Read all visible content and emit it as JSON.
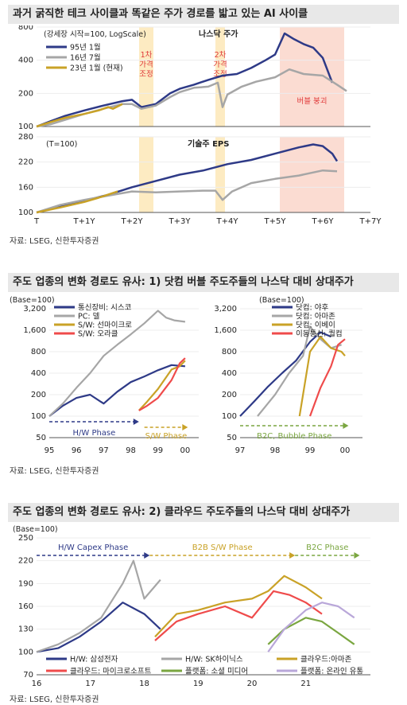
{
  "section1": {
    "title": "과거 굵직한 테크 사이클과 똑같은 주가 경로를 밟고 있는 AI 사이클",
    "source": "자료: LSEG, 신한투자증권"
  },
  "section2": {
    "title": "주도 업종의 변화 경로도 유사: 1) 닷컴 버블 주도주들의 나스닥 대비 상대주가",
    "source": "자료: LSEG, 신한투자증권"
  },
  "section3": {
    "title": "주도 업종의 변화 경로도 유사: 2) 클라우드 주도주들의 나스닥 대비 상대주가",
    "source": "자료: LSEG, 신한투자증권"
  },
  "chart_data": [
    {
      "id": "nasdaq",
      "type": "line",
      "title": "나스닥 주가",
      "note": "(강세장 시작=100, LogScale)",
      "y_scale": "log",
      "ylim": [
        100,
        800
      ],
      "yticks": [
        100,
        200,
        400,
        800
      ],
      "x_ticks": [
        "T",
        "T+1Y",
        "T+2Y",
        "T+3Y",
        "T+4Y",
        "T+5Y",
        "T+6Y",
        "T+7Y"
      ],
      "xlim": [
        0,
        7
      ],
      "colors": {
        "s95": "#2e3a87",
        "s16": "#a6a6a6",
        "s23": "#c9a227"
      },
      "series": [
        {
          "key": "s95",
          "name": "95년 1월",
          "x": [
            0,
            0.3,
            0.6,
            1.0,
            1.4,
            1.8,
            2.0,
            2.2,
            2.5,
            2.8,
            3.0,
            3.3,
            3.6,
            3.9,
            4.2,
            4.5,
            4.8,
            5.0,
            5.1,
            5.2,
            5.4,
            5.6,
            5.8,
            6.0,
            6.2
          ],
          "y": [
            100,
            112,
            125,
            140,
            155,
            170,
            175,
            150,
            160,
            200,
            220,
            240,
            265,
            290,
            300,
            340,
            400,
            450,
            560,
            700,
            620,
            560,
            520,
            420,
            250
          ]
        },
        {
          "key": "s16",
          "name": "16년 7월",
          "x": [
            0,
            0.3,
            0.6,
            1.0,
            1.4,
            1.8,
            2.0,
            2.2,
            2.5,
            2.8,
            3.0,
            3.3,
            3.6,
            3.8,
            3.9,
            4.0,
            4.3,
            4.6,
            5.0,
            5.3,
            5.6,
            6.0,
            6.3,
            6.5
          ],
          "y": [
            100,
            105,
            115,
            130,
            145,
            160,
            160,
            145,
            155,
            185,
            205,
            225,
            230,
            250,
            150,
            195,
            230,
            255,
            280,
            330,
            300,
            290,
            240,
            210
          ]
        },
        {
          "key": "s23",
          "name": "23년 1월 (현재)",
          "x": [
            0,
            0.3,
            0.6,
            1.0,
            1.3,
            1.5,
            1.6,
            1.8
          ],
          "y": [
            100,
            110,
            120,
            130,
            140,
            150,
            145,
            160
          ]
        }
      ],
      "phases": [
        {
          "label": "1차\n가격\n조정",
          "x0": 2.15,
          "x1": 2.45
        },
        {
          "label": "2차\n가격\n조정",
          "x0": 3.75,
          "x1": 3.95
        },
        {
          "label": "버블 붕괴",
          "x0": 5.1,
          "x1": 6.45
        }
      ]
    },
    {
      "id": "eps",
      "type": "line",
      "title": "기술주 EPS",
      "note": "(T=100)",
      "ylim": [
        100,
        280
      ],
      "yticks": [
        100,
        160,
        220,
        280
      ],
      "xlim": [
        0,
        7
      ],
      "series": [
        {
          "key": "s95",
          "x": [
            0,
            0.5,
            1.0,
            1.5,
            2.0,
            2.5,
            3.0,
            3.5,
            4.0,
            4.5,
            5.0,
            5.5,
            5.8,
            6.0,
            6.2,
            6.3
          ],
          "y": [
            100,
            115,
            128,
            142,
            160,
            175,
            190,
            200,
            215,
            225,
            240,
            255,
            262,
            258,
            240,
            222
          ]
        },
        {
          "key": "s16",
          "x": [
            0,
            0.5,
            1.0,
            1.5,
            2.0,
            2.5,
            3.0,
            3.5,
            3.75,
            3.9,
            4.1,
            4.5,
            5.0,
            5.5,
            6.0,
            6.3
          ],
          "y": [
            100,
            118,
            130,
            140,
            150,
            148,
            150,
            152,
            152,
            130,
            150,
            170,
            180,
            188,
            200,
            198
          ]
        },
        {
          "key": "s23",
          "x": [
            0,
            0.5,
            1.0,
            1.3,
            1.7
          ],
          "y": [
            100,
            112,
            125,
            135,
            150
          ]
        }
      ]
    },
    {
      "id": "dotcom_hw_sw",
      "type": "line",
      "note": "(Base=100)",
      "y_scale": "log",
      "ylim": [
        50,
        3200
      ],
      "yticks": [
        50,
        100,
        200,
        400,
        800,
        1600,
        3200
      ],
      "x_ticks": [
        "95",
        "96",
        "97",
        "98",
        "99",
        "00"
      ],
      "xlim": [
        1995,
        2000.5
      ],
      "series": [
        {
          "name": "통신장비: 시스코",
          "color": "#2e3a87",
          "x": [
            1995,
            1995.5,
            1996,
            1996.5,
            1997,
            1997.5,
            1998,
            1998.5,
            1999,
            1999.5,
            2000
          ],
          "y": [
            100,
            140,
            180,
            200,
            150,
            220,
            300,
            360,
            440,
            520,
            500
          ]
        },
        {
          "name": "PC: 델",
          "color": "#a6a6a6",
          "x": [
            1995,
            1995.5,
            1996,
            1996.5,
            1997,
            1997.5,
            1998,
            1998.5,
            1999,
            1999.3,
            1999.6,
            2000
          ],
          "y": [
            100,
            150,
            250,
            400,
            700,
            1000,
            1400,
            2000,
            3000,
            2400,
            2200,
            2100
          ]
        },
        {
          "name": "S/W: 선마이크로",
          "color": "#c9a227",
          "x": [
            1998.3,
            1998.6,
            1999,
            1999.5,
            1999.8,
            2000
          ],
          "y": [
            120,
            160,
            240,
            450,
            500,
            600
          ]
        },
        {
          "name": "S/W: 오라클",
          "color": "#ef4b4b",
          "x": [
            1998.3,
            1998.6,
            1999,
            1999.5,
            1999.8,
            2000
          ],
          "y": [
            120,
            140,
            180,
            320,
            550,
            650
          ]
        }
      ],
      "phases": [
        {
          "label": "H/W Phase",
          "x0": 1995,
          "x1": 1998.3,
          "color": "#2e3a87"
        },
        {
          "label": "S/W Phase",
          "x0": 1998.5,
          "x1": 2000.1,
          "color": "#c9a227"
        }
      ]
    },
    {
      "id": "dotcom_b2c",
      "type": "line",
      "note": "(Base=100)",
      "y_scale": "log",
      "ylim": [
        50,
        3200
      ],
      "yticks": [
        50,
        100,
        200,
        400,
        800,
        1600,
        3200
      ],
      "x_ticks": [
        "97",
        "98",
        "99",
        "00"
      ],
      "xlim": [
        1997,
        2000.5
      ],
      "series": [
        {
          "name": "닷컴: 야후",
          "color": "#2e3a87",
          "x": [
            1997,
            1997.4,
            1997.8,
            1998.2,
            1998.6,
            1999,
            1999.3,
            1999.6
          ],
          "y": [
            100,
            160,
            260,
            400,
            600,
            1100,
            1500,
            1300
          ]
        },
        {
          "name": "닷컴: 아마존",
          "color": "#a6a6a6",
          "x": [
            1997.5,
            1998,
            1998.4,
            1998.8,
            1999,
            1999.3,
            1999.6,
            1999.9
          ],
          "y": [
            100,
            200,
            400,
            700,
            1800,
            1200,
            900,
            1000
          ]
        },
        {
          "name": "닷컴: 이베이",
          "color": "#c9a227",
          "x": [
            1998.7,
            1999,
            1999.3,
            1999.6,
            1999.9,
            2000
          ],
          "y": [
            100,
            800,
            1300,
            900,
            800,
            700
          ]
        },
        {
          "name": "이동통신: 퀄컴",
          "color": "#ef4b4b",
          "x": [
            1999,
            1999.3,
            1999.6,
            1999.8,
            2000
          ],
          "y": [
            100,
            250,
            500,
            1000,
            1200
          ]
        }
      ],
      "phases": [
        {
          "label": "B2C, Bubble Phase",
          "x0": 1997,
          "x1": 2000.1,
          "color": "#7aa640"
        }
      ]
    },
    {
      "id": "cloud",
      "type": "line",
      "note": "(Base=100)",
      "ylim": [
        70,
        250
      ],
      "yticks": [
        70,
        100,
        130,
        160,
        190,
        220,
        250
      ],
      "x_ticks": [
        "16",
        "17",
        "18",
        "19",
        "20",
        "21"
      ],
      "xlim": [
        2016,
        2022.2
      ],
      "series": [
        {
          "name": "H/W: 삼성전자",
          "color": "#2e3a87",
          "x": [
            2016,
            2016.4,
            2016.8,
            2017.2,
            2017.6,
            2018,
            2018.3
          ],
          "y": [
            100,
            105,
            120,
            140,
            165,
            150,
            130
          ]
        },
        {
          "name": "H/W: SK하이닉스",
          "color": "#a6a6a6",
          "x": [
            2016,
            2016.4,
            2016.8,
            2017.2,
            2017.6,
            2017.8,
            2018,
            2018.3
          ],
          "y": [
            100,
            110,
            125,
            145,
            190,
            220,
            170,
            195
          ]
        },
        {
          "name": "클라우드:아마존",
          "color": "#c9a227",
          "x": [
            2018.2,
            2018.6,
            2019,
            2019.5,
            2020,
            2020.3,
            2020.6,
            2021,
            2021.3
          ],
          "y": [
            120,
            150,
            155,
            165,
            170,
            180,
            200,
            185,
            170
          ]
        },
        {
          "name": "클라우드: 마이크로소프트",
          "color": "#ef4b4b",
          "x": [
            2018.2,
            2018.6,
            2019,
            2019.5,
            2020,
            2020.4,
            2020.7,
            2021,
            2021.3
          ],
          "y": [
            115,
            140,
            150,
            160,
            145,
            180,
            175,
            165,
            150
          ]
        },
        {
          "name": "플랫폼: 소셜 미디어",
          "color": "#7aa640",
          "x": [
            2020.3,
            2020.6,
            2021,
            2021.3,
            2021.6,
            2021.9
          ],
          "y": [
            110,
            130,
            145,
            140,
            125,
            110
          ]
        },
        {
          "name": "플랫폼: 온라인 유통",
          "color": "#b9a7d9",
          "x": [
            2020.3,
            2020.6,
            2021,
            2021.3,
            2021.6,
            2021.9
          ],
          "y": [
            100,
            130,
            155,
            165,
            160,
            145
          ]
        }
      ],
      "phases": [
        {
          "label": "H/W Capex Phase",
          "x0": 2016,
          "x1": 2018.1,
          "color": "#2e3a87"
        },
        {
          "label": "B2B S/W Phase",
          "x0": 2018.1,
          "x1": 2020.8,
          "color": "#c9a227"
        },
        {
          "label": "B2C Phase",
          "x0": 2020.8,
          "x1": 2022,
          "color": "#7aa640"
        }
      ]
    }
  ]
}
